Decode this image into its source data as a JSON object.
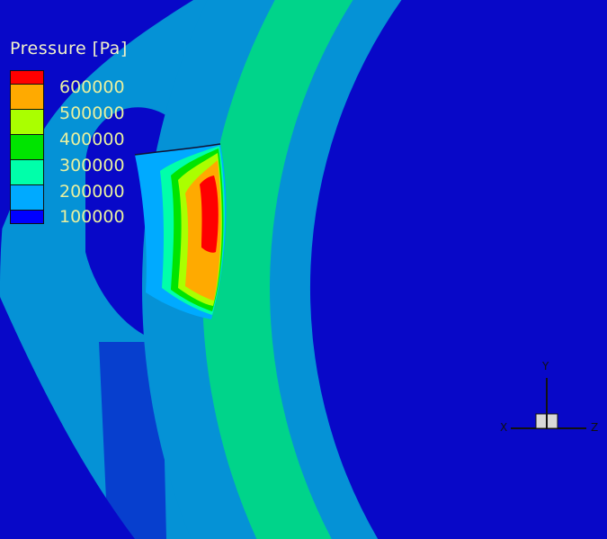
{
  "legend": {
    "title": "Pressure [Pa]",
    "levels": [
      {
        "label": "600000",
        "color": "#ff0000"
      },
      {
        "label": "500000",
        "color": "#ffaa00"
      },
      {
        "label": "400000",
        "color": "#aaff00"
      },
      {
        "label": "300000",
        "color": "#00e400"
      },
      {
        "label": "200000",
        "color": "#00ffaa"
      },
      {
        "label": "100000",
        "color": "#00aaff"
      },
      {
        "label": "",
        "color": "#0000ff"
      }
    ]
  },
  "axes_triad": {
    "x": "X",
    "y": "Y",
    "z": "Z"
  },
  "colors": {
    "background": "#0808c8",
    "band_light_blue": "#0592d6",
    "band_green": "#00d48a"
  }
}
